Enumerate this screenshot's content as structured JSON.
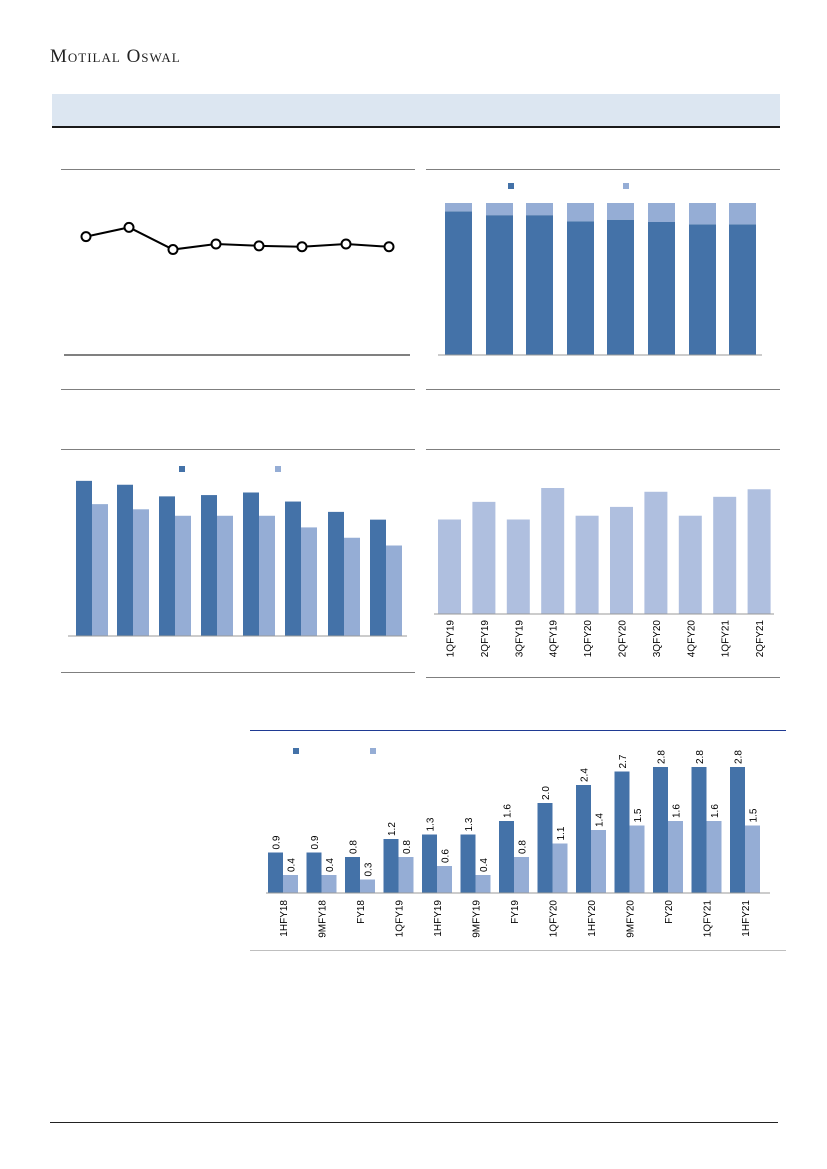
{
  "header": {
    "brand": "Motilal Oswal"
  },
  "colors": {
    "primary": "#4472a8",
    "secondary": "#95add5",
    "single": "#afbfdf",
    "line": "#000000",
    "banner": "#dce6f1"
  },
  "chart_data": [
    {
      "id": "line-chart",
      "type": "line",
      "x": [
        "",
        "",
        "",
        "",
        "",
        "",
        "",
        ""
      ],
      "series": [
        {
          "values": [
            64,
            69,
            57,
            60,
            59,
            58.5,
            60,
            58.5
          ]
        }
      ],
      "ylim": [
        0,
        100
      ],
      "marker": "hollow-circle"
    },
    {
      "id": "stacked-chart",
      "type": "bar",
      "stacked": true,
      "categories": [
        "",
        "",
        "",
        "",
        "",
        "",
        "",
        ""
      ],
      "series": [
        {
          "values": [
            94.5,
            92,
            92,
            88,
            89,
            87.5,
            86,
            86
          ]
        },
        {
          "values": [
            5.5,
            8,
            8,
            12,
            11,
            12.5,
            14,
            14
          ]
        }
      ],
      "ylim": [
        0,
        100
      ],
      "legend": "top-center"
    },
    {
      "id": "grouped-chart",
      "type": "bar",
      "categories": [
        "",
        "",
        "",
        "",
        "",
        "",
        "",
        ""
      ],
      "series": [
        {
          "values": [
            60,
            58.5,
            54,
            54.5,
            55.5,
            52,
            48,
            45
          ]
        },
        {
          "values": [
            51,
            49,
            46.5,
            46.5,
            46.5,
            42,
            38,
            35
          ]
        }
      ],
      "ylim": [
        0,
        70
      ],
      "legend": "top-center"
    },
    {
      "id": "single-bar-chart",
      "type": "bar",
      "categories": [
        "1QFY19",
        "2QFY19",
        "3QFY19",
        "4QFY19",
        "1QFY20",
        "2QFY20",
        "3QFY20",
        "4QFY20",
        "1QFY21",
        "2QFY21"
      ],
      "series": [
        {
          "values": [
            75,
            89,
            75,
            100,
            78,
            85,
            97,
            78,
            93,
            99
          ]
        }
      ],
      "ylim": [
        0,
        100
      ]
    },
    {
      "id": "half-yearly-chart",
      "type": "bar",
      "categories": [
        "1HFY18",
        "9MFY18",
        "FY18",
        "1QFY19",
        "1HFY19",
        "9MFY19",
        "FY19",
        "1QFY20",
        "1HFY20",
        "9MFY20",
        "FY20",
        "1QFY21",
        "1HFY21"
      ],
      "series": [
        {
          "values": [
            0.9,
            0.9,
            0.8,
            1.2,
            1.3,
            1.3,
            1.6,
            2.0,
            2.4,
            2.7,
            2.8,
            2.8,
            2.8
          ]
        },
        {
          "values": [
            0.4,
            0.4,
            0.3,
            0.8,
            0.6,
            0.4,
            0.8,
            1.1,
            1.4,
            1.5,
            1.6,
            1.6,
            1.5
          ]
        }
      ],
      "value_labels": [
        [
          "0.9",
          "0.9",
          "0.8",
          "1.2",
          "1.3",
          "1.3",
          "1.6",
          "2.0",
          "2.4",
          "2.7",
          "2.8",
          "2.8",
          "2.8"
        ],
        [
          "0.4",
          "0.4",
          "0.3",
          "0.8",
          "0.6",
          "0.4",
          "0.8",
          "1.1",
          "1.4",
          "1.5",
          "1.6",
          "1.6",
          "1.5"
        ]
      ],
      "ylim": [
        0,
        3.0
      ],
      "legend": "top-left"
    }
  ]
}
